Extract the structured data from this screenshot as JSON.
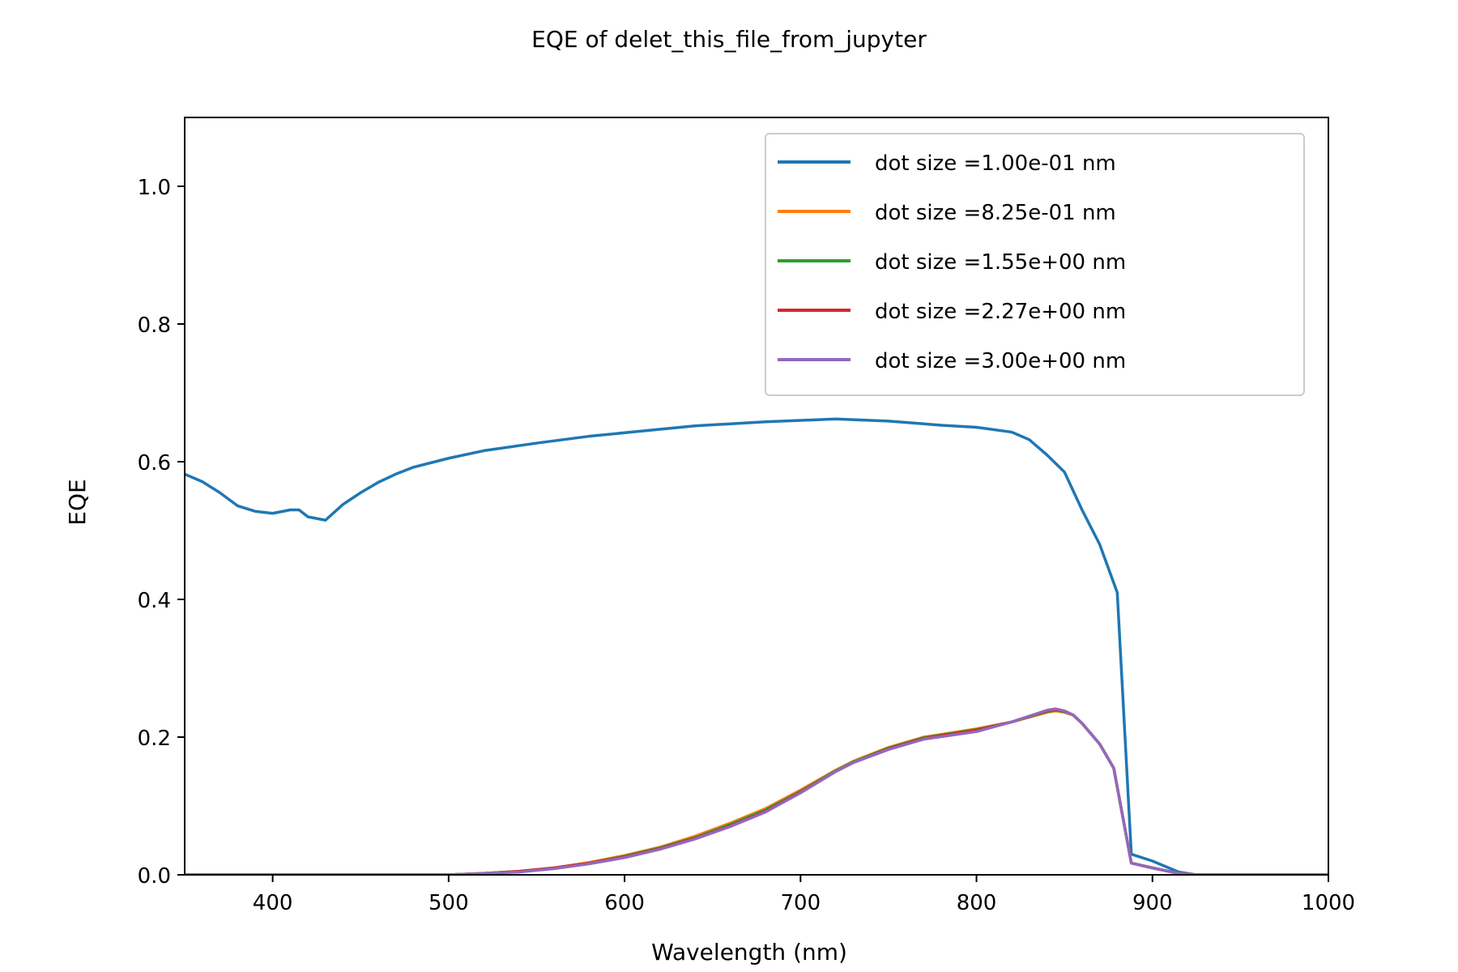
{
  "chart_data": {
    "type": "line",
    "title": "EQE of  delet_this_file_from_jupyter",
    "xlabel": "Wavelength (nm)",
    "ylabel": "EQE",
    "xlim": [
      350,
      1000
    ],
    "ylim": [
      0,
      1.1
    ],
    "x_ticks": [
      400,
      500,
      600,
      700,
      800,
      900,
      1000
    ],
    "y_ticks": [
      0.0,
      0.2,
      0.4,
      0.6,
      0.8,
      1.0
    ],
    "x_tick_labels": [
      "400",
      "500",
      "600",
      "700",
      "800",
      "900",
      "1000"
    ],
    "y_tick_labels": [
      "0.0",
      "0.2",
      "0.4",
      "0.6",
      "0.8",
      "1.0"
    ],
    "grid": false,
    "legend_position": "top-right",
    "series": [
      {
        "name": "dot size =1.00e-01 nm",
        "color": "#1f77b4",
        "x": [
          350,
          360,
          370,
          380,
          390,
          400,
          410,
          415,
          420,
          430,
          440,
          450,
          460,
          470,
          480,
          500,
          520,
          550,
          580,
          600,
          640,
          680,
          700,
          720,
          750,
          780,
          800,
          820,
          830,
          840,
          850,
          860,
          870,
          880,
          888,
          900,
          915,
          925,
          1000
        ],
        "y": [
          0.582,
          0.571,
          0.555,
          0.536,
          0.528,
          0.525,
          0.53,
          0.53,
          0.52,
          0.515,
          0.538,
          0.555,
          0.57,
          0.582,
          0.592,
          0.605,
          0.616,
          0.627,
          0.637,
          0.642,
          0.652,
          0.658,
          0.66,
          0.662,
          0.659,
          0.653,
          0.65,
          0.643,
          0.632,
          0.61,
          0.585,
          0.53,
          0.48,
          0.41,
          0.03,
          0.02,
          0.004,
          0.0,
          0.0
        ]
      },
      {
        "name": "dot size =8.25e-01 nm",
        "color": "#ff7f0e",
        "x": [
          350,
          500,
          520,
          540,
          560,
          580,
          600,
          620,
          640,
          660,
          680,
          700,
          720,
          730,
          750,
          770,
          800,
          820,
          840,
          845,
          850,
          855,
          860,
          870,
          878,
          888,
          900,
          915,
          925,
          1000
        ],
        "y": [
          0.0,
          0.0,
          0.002,
          0.005,
          0.01,
          0.018,
          0.028,
          0.04,
          0.056,
          0.075,
          0.096,
          0.123,
          0.152,
          0.165,
          0.185,
          0.2,
          0.212,
          0.222,
          0.236,
          0.238,
          0.236,
          0.232,
          0.22,
          0.19,
          0.155,
          0.017,
          0.01,
          0.002,
          0.0,
          0.0
        ]
      },
      {
        "name": "dot size =1.55e+00 nm",
        "color": "#2ca02c",
        "x": [
          350,
          500,
          520,
          540,
          560,
          580,
          600,
          620,
          640,
          660,
          680,
          700,
          720,
          730,
          750,
          770,
          800,
          820,
          840,
          845,
          850,
          855,
          860,
          870,
          878,
          888,
          900,
          915,
          925,
          1000
        ],
        "y": [
          0.0,
          0.0,
          0.002,
          0.005,
          0.01,
          0.017,
          0.027,
          0.039,
          0.054,
          0.073,
          0.094,
          0.121,
          0.151,
          0.164,
          0.184,
          0.199,
          0.211,
          0.222,
          0.237,
          0.239,
          0.237,
          0.232,
          0.22,
          0.19,
          0.155,
          0.017,
          0.01,
          0.002,
          0.0,
          0.0
        ]
      },
      {
        "name": "dot size =2.27e+00 nm",
        "color": "#d62728",
        "x": [
          350,
          500,
          520,
          540,
          560,
          580,
          600,
          620,
          640,
          660,
          680,
          700,
          720,
          730,
          750,
          770,
          800,
          820,
          840,
          845,
          850,
          855,
          860,
          870,
          878,
          888,
          900,
          915,
          925,
          1000
        ],
        "y": [
          0.0,
          0.0,
          0.002,
          0.005,
          0.01,
          0.017,
          0.026,
          0.038,
          0.053,
          0.071,
          0.092,
          0.12,
          0.15,
          0.163,
          0.183,
          0.198,
          0.21,
          0.222,
          0.238,
          0.24,
          0.238,
          0.232,
          0.22,
          0.19,
          0.155,
          0.017,
          0.01,
          0.002,
          0.0,
          0.0
        ]
      },
      {
        "name": "dot size =3.00e+00 nm",
        "color": "#9467bd",
        "x": [
          350,
          500,
          520,
          540,
          560,
          580,
          600,
          620,
          640,
          660,
          680,
          700,
          720,
          730,
          750,
          770,
          800,
          820,
          840,
          845,
          850,
          855,
          860,
          870,
          878,
          888,
          900,
          915,
          925,
          1000
        ],
        "y": [
          0.0,
          0.0,
          0.002,
          0.004,
          0.009,
          0.016,
          0.025,
          0.037,
          0.052,
          0.07,
          0.091,
          0.119,
          0.15,
          0.163,
          0.182,
          0.197,
          0.208,
          0.222,
          0.239,
          0.241,
          0.238,
          0.232,
          0.22,
          0.19,
          0.155,
          0.017,
          0.01,
          0.002,
          0.0,
          0.0
        ]
      }
    ]
  }
}
